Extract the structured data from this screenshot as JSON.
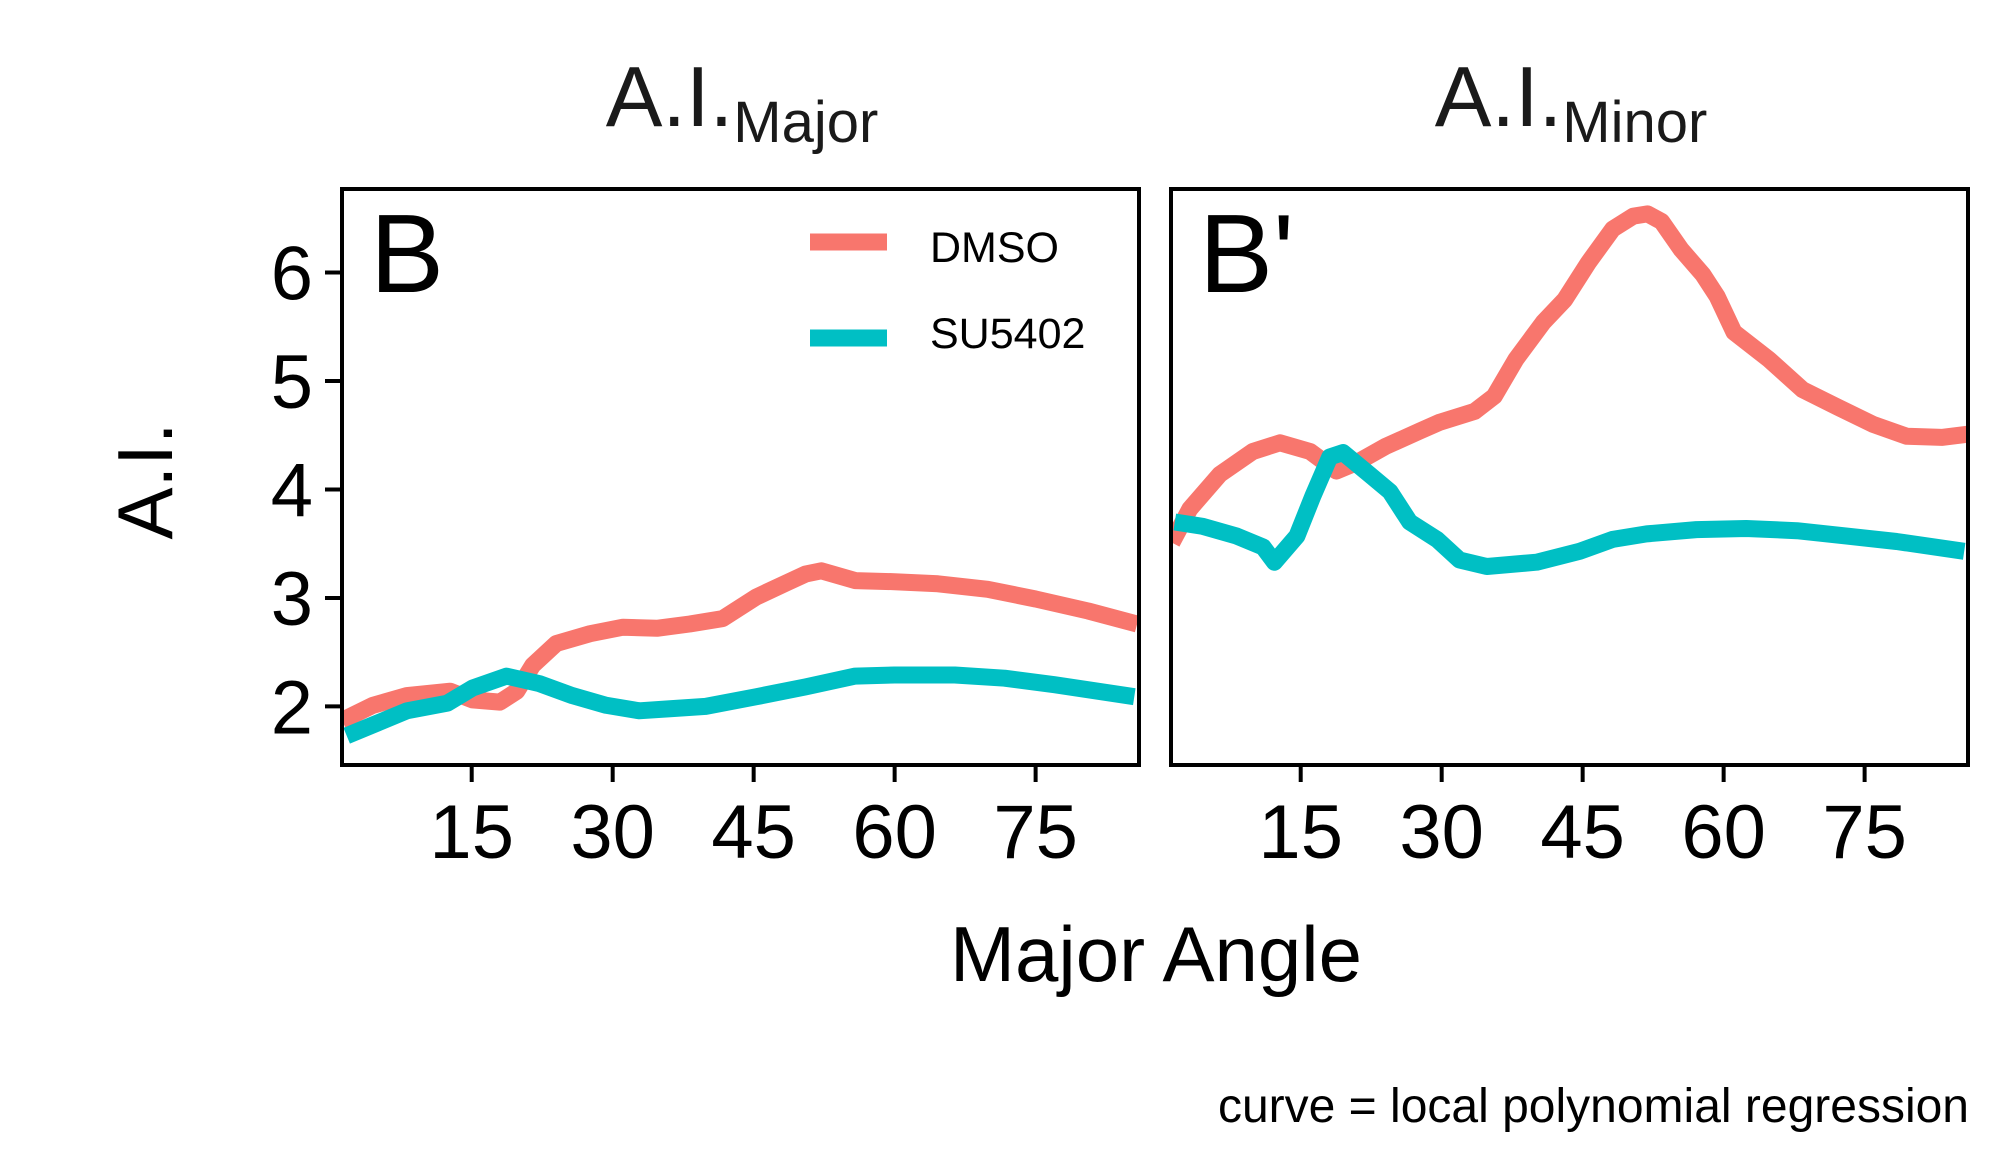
{
  "chart_data": {
    "type": "line",
    "layout": "faceted, 2 panels side by side, shared y axis",
    "xlabel": "Major Angle",
    "ylabel": "A.I.",
    "caption": "curve = local polynomial regression",
    "x_ticks": [
      15,
      30,
      45,
      60,
      75
    ],
    "y_ticks": [
      2,
      3,
      4,
      5,
      6
    ],
    "xlim": [
      1.2,
      86.0
    ],
    "ylim": [
      1.46,
      6.77
    ],
    "grid": false,
    "legend": {
      "position": "inside top-right of left panel",
      "entries": [
        {
          "label": "DMSO",
          "color": "#F8766D"
        },
        {
          "label": "SU5402",
          "color": "#00BFC4"
        }
      ]
    },
    "panels": [
      {
        "title_main": "A.I.",
        "title_sub": "Major",
        "tag": "B",
        "series": [
          {
            "name": "DMSO",
            "color": "#F8766D",
            "x": [
              1.2,
              4.5,
              8.1,
              12.7,
              15.1,
              18.0,
              19.8,
              21.5,
              24.0,
              27.6,
              31.1,
              34.7,
              38.2,
              41.7,
              45.3,
              48.5,
              50.5,
              52.2,
              55.8,
              60.0,
              64.6,
              69.9,
              75.0,
              80.6,
              85.8
            ],
            "y": [
              1.87,
              2.01,
              2.1,
              2.14,
              2.06,
              2.04,
              2.14,
              2.38,
              2.58,
              2.67,
              2.73,
              2.72,
              2.76,
              2.81,
              3.01,
              3.14,
              3.22,
              3.25,
              3.16,
              3.15,
              3.13,
              3.08,
              2.99,
              2.88,
              2.76
            ]
          },
          {
            "name": "SU5402",
            "color": "#00BFC4",
            "x": [
              1.7,
              4.5,
              8.1,
              12.4,
              15.1,
              18.7,
              22.2,
              25.7,
              29.3,
              32.8,
              36.3,
              39.9,
              45.3,
              50.5,
              55.8,
              60.0,
              66.4,
              71.7,
              77.0,
              85.5
            ],
            "y": [
              1.73,
              1.83,
              1.96,
              2.03,
              2.17,
              2.28,
              2.21,
              2.1,
              2.01,
              1.96,
              1.98,
              2.0,
              2.09,
              2.18,
              2.28,
              2.29,
              2.29,
              2.26,
              2.2,
              2.09
            ]
          }
        ]
      },
      {
        "title_main": "A.I.",
        "title_sub": "Minor",
        "tag": "B'",
        "series": [
          {
            "name": "DMSO",
            "color": "#F8766D",
            "x": [
              1.3,
              3.2,
              6.4,
              9.9,
              12.8,
              16.0,
              18.8,
              21.0,
              24.1,
              27.7,
              29.8,
              33.5,
              35.6,
              37.9,
              40.8,
              43.1,
              45.6,
              48.2,
              50.4,
              51.9,
              53.4,
              55.5,
              57.8,
              59.3,
              61.1,
              64.8,
              68.4,
              72.1,
              75.9,
              79.5,
              83.2,
              86.0
            ],
            "y": [
              3.51,
              3.82,
              4.14,
              4.35,
              4.43,
              4.35,
              4.17,
              4.25,
              4.4,
              4.54,
              4.62,
              4.72,
              4.86,
              5.2,
              5.54,
              5.75,
              6.09,
              6.4,
              6.52,
              6.54,
              6.47,
              6.21,
              5.98,
              5.78,
              5.45,
              5.2,
              4.92,
              4.76,
              4.6,
              4.49,
              4.48,
              4.51
            ]
          },
          {
            "name": "SU5402",
            "color": "#00BFC4",
            "x": [
              1.6,
              4.6,
              8.2,
              11.0,
              12.2,
              14.6,
              16.3,
              18.1,
              19.5,
              22.3,
              24.5,
              26.6,
              29.5,
              31.9,
              34.8,
              40.1,
              44.7,
              48.2,
              51.8,
              57.1,
              62.4,
              67.8,
              73.1,
              78.4,
              85.6
            ],
            "y": [
              3.7,
              3.66,
              3.57,
              3.47,
              3.33,
              3.57,
              3.94,
              4.3,
              4.34,
              4.14,
              3.98,
              3.7,
              3.54,
              3.35,
              3.29,
              3.33,
              3.43,
              3.54,
              3.59,
              3.63,
              3.64,
              3.62,
              3.57,
              3.52,
              3.43
            ]
          }
        ]
      }
    ]
  }
}
